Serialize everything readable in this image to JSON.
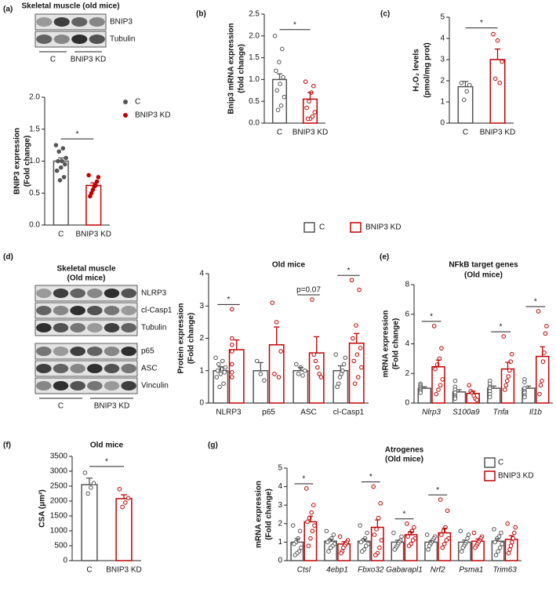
{
  "chart_data": [
    {
      "type": "bar",
      "panel": "(a)",
      "ylabel": [
        "BNIP3 expression",
        "(Fold change)"
      ],
      "categories": [
        "C",
        "BNIP3 KD"
      ],
      "colors": [
        "#555555",
        "#c00000"
      ],
      "values": [
        1.0,
        0.62
      ],
      "errors": [
        0.05,
        0.04
      ],
      "points": [
        [
          1.25,
          1.2,
          1.15,
          1.05,
          1.0,
          1.0,
          0.95,
          0.9,
          0.85,
          0.75,
          0.7
        ],
        [
          0.78,
          0.75,
          0.68,
          0.62,
          0.6,
          0.55,
          0.5,
          0.45
        ]
      ],
      "point_style": "filled",
      "ylim": [
        0,
        2
      ],
      "yticks": [
        {
          "value": 0,
          "label": "0.0"
        },
        0.5,
        {
          "value": 1,
          "label": "1.0"
        },
        1.5,
        {
          "value": 2,
          "label": "2.0"
        }
      ],
      "significance": "*",
      "legend": "right",
      "legend_marker": "circle"
    },
    {
      "type": "bar",
      "panel": "(b)",
      "ylabel": [
        "Bnip3 mRNA expression",
        "(fold change)"
      ],
      "categories": [
        "C",
        "BNIP3 KD"
      ],
      "colors": [
        "#555555",
        "#c00000"
      ],
      "values": [
        1.0,
        0.55
      ],
      "errors": [
        0.13,
        0.15
      ],
      "points": [
        [
          2.0,
          1.7,
          1.4,
          1.2,
          1.05,
          0.9,
          0.75,
          0.6,
          0.4,
          0.3
        ],
        [
          0.95,
          0.85,
          0.7,
          0.5,
          0.35,
          0.25,
          0.15,
          0.1,
          0.1
        ]
      ],
      "point_style": "open",
      "ylim": [
        0,
        2.5
      ],
      "yticks": [
        {
          "value": 0,
          "label": "0.0"
        },
        0.5,
        {
          "value": 1,
          "label": "1.0"
        },
        1.5,
        {
          "value": 2,
          "label": "2.0"
        },
        2.5
      ],
      "significance": "*"
    },
    {
      "type": "bar",
      "panel": "(c)",
      "ylabel": [
        "H₂O₂ levels",
        "(pmol/mg prot)"
      ],
      "categories": [
        "C",
        "BNIP3 KD"
      ],
      "colors": [
        "#555555",
        "#c00000"
      ],
      "values": [
        1.72,
        3.0
      ],
      "errors": [
        0.25,
        0.5
      ],
      "points": [
        [
          1.9,
          1.8,
          1.5,
          1.1
        ],
        [
          4.2,
          3.9,
          2.9,
          2.1,
          1.9
        ]
      ],
      "point_style": "open",
      "ylim": [
        0,
        5
      ],
      "yticks": [
        0,
        1,
        2,
        3,
        4,
        5
      ],
      "significance": "*"
    },
    {
      "type": "bar",
      "panel": "(d)",
      "title": [
        "Old mice"
      ],
      "ylabel": [
        "Protein expression",
        "(Fold change)"
      ],
      "categories": [
        "NLRP3",
        "p65",
        "ASC",
        "cl-Casp1"
      ],
      "series": [
        {
          "name": "C",
          "color": "#555555",
          "values": [
            1.0,
            1.0,
            1.0,
            1.0
          ],
          "errors": [
            0.12,
            0.25,
            0.1,
            0.15
          ],
          "points": [
            [
              1.4,
              1.3,
              1.2,
              1.1,
              1.05,
              1.0,
              0.95,
              0.9,
              0.8,
              0.6,
              0.5
            ],
            [
              1.3,
              0.9,
              0.7
            ],
            [
              1.2,
              1.1,
              1.0,
              0.9,
              0.85
            ],
            [
              1.5,
              1.4,
              1.2,
              1.0,
              0.9,
              0.8,
              0.6,
              0.5
            ]
          ]
        },
        {
          "name": "BNIP3 KD",
          "color": "#c00000",
          "values": [
            1.65,
            1.8,
            1.55,
            1.85
          ],
          "errors": [
            0.3,
            0.55,
            0.5,
            0.3
          ],
          "points": [
            [
              2.9,
              2.0,
              1.8,
              1.6,
              1.2,
              0.95,
              0.8
            ],
            [
              3.1,
              2.5,
              1.6,
              0.9,
              0.8
            ],
            [
              3.2,
              1.5,
              1.3,
              1.1,
              0.9,
              0.8
            ],
            [
              3.8,
              3.5,
              2.4,
              2.0,
              1.7,
              1.5,
              1.3,
              1.1,
              0.8,
              0.6
            ]
          ]
        }
      ],
      "point_style": "open",
      "ylim": [
        0,
        4
      ],
      "yticks": [
        0,
        1,
        2,
        3,
        4
      ],
      "significance": [
        "*",
        null,
        "p=0.07",
        "*"
      ]
    },
    {
      "type": "bar",
      "panel": "(e)",
      "title": [
        "NFkB target genes",
        "(Old mice)"
      ],
      "ylabel": [
        "mRNA expression",
        "(Fold change)"
      ],
      "categories": [
        "Nlrp3",
        "S100a9",
        "Tnfa",
        "Il1b"
      ],
      "italic_categories": true,
      "series": [
        {
          "name": "C",
          "color": "#555555",
          "values": [
            1.0,
            0.75,
            1.0,
            1.0
          ],
          "errors": [
            0.1,
            0.15,
            0.15,
            0.15
          ],
          "points": [
            [
              1.3,
              1.2,
              1.1,
              1.0,
              0.9,
              0.8,
              0.7
            ],
            [
              1.5,
              1.1,
              0.9,
              0.7,
              0.5,
              0.4,
              0.3
            ],
            [
              1.5,
              1.3,
              1.1,
              1.0,
              0.8,
              0.6,
              0.4
            ],
            [
              1.6,
              1.4,
              1.0,
              0.8,
              0.7,
              0.5,
              0.4
            ]
          ]
        },
        {
          "name": "BNIP3 KD",
          "color": "#c00000",
          "values": [
            2.45,
            0.65,
            2.3,
            3.15
          ],
          "errors": [
            0.45,
            0.15,
            0.45,
            0.65
          ],
          "points": [
            [
              5.2,
              3.7,
              3.0,
              2.6,
              2.3,
              1.6,
              1.2,
              0.9,
              0.6
            ],
            [
              1.2,
              0.8,
              0.7,
              0.5,
              0.3,
              0.2
            ],
            [
              4.5,
              3.3,
              2.8,
              2.2,
              1.8,
              1.5,
              1.2,
              0.9
            ],
            [
              6.2,
              5.2,
              4.7,
              3.4,
              2.8,
              1.5,
              1.2,
              0.6
            ]
          ]
        }
      ],
      "point_style": "open",
      "ylim": [
        0,
        8
      ],
      "yticks": [
        0,
        2,
        4,
        6,
        8
      ],
      "significance": [
        "*",
        null,
        "*",
        "*"
      ]
    },
    {
      "type": "bar",
      "panel": "(f)",
      "title": [
        "Old mice"
      ],
      "ylabel": [
        "CSA (μm²)"
      ],
      "categories": [
        "C",
        "BNIP3 KD"
      ],
      "colors": [
        "#555555",
        "#c00000"
      ],
      "values": [
        2550,
        2080
      ],
      "errors": [
        220,
        130
      ],
      "points": [
        [
          2950,
          2600,
          2450,
          2250
        ],
        [
          2400,
          2100,
          1950,
          1800
        ]
      ],
      "point_style": "open",
      "ylim": [
        0,
        3500
      ],
      "yticks": [
        0,
        500,
        1000,
        1500,
        2000,
        2500,
        3000,
        3500
      ],
      "significance": "*"
    },
    {
      "type": "bar",
      "panel": "(g)",
      "title": [
        "Atrogenes",
        "(Old mice)"
      ],
      "ylabel": [
        "mRNA expression",
        "(Fold change)"
      ],
      "categories": [
        "Ctsl",
        "4ebp1",
        "Fbxo32",
        "Gabarapl1",
        "Nrf2",
        "Psma1",
        "Trim63"
      ],
      "italic_categories": true,
      "series": [
        {
          "name": "C",
          "color": "#555555",
          "values": [
            1.0,
            1.05,
            1.05,
            1.0,
            1.0,
            1.0,
            1.05
          ],
          "errors": [
            0.18,
            0.1,
            0.12,
            0.1,
            0.08,
            0.1,
            0.14
          ],
          "points": [
            [
              1.9,
              1.6,
              1.2,
              1.0,
              0.9,
              0.7,
              0.5,
              0.4,
              0.3
            ],
            [
              1.6,
              1.4,
              1.2,
              1.1,
              1.0,
              0.9,
              0.8,
              0.7,
              0.5
            ],
            [
              1.9,
              1.5,
              1.2,
              1.1,
              1.0,
              0.9,
              0.8,
              0.6,
              0.5
            ],
            [
              1.5,
              1.3,
              1.1,
              1.0,
              0.9,
              0.8,
              0.7,
              0.6
            ],
            [
              1.4,
              1.3,
              1.2,
              1.1,
              1.0,
              0.9,
              0.8,
              0.6
            ],
            [
              1.6,
              1.4,
              1.2,
              1.0,
              0.9,
              0.8,
              0.7,
              0.5
            ],
            [
              1.7,
              1.5,
              1.3,
              1.2,
              1.0,
              0.9,
              0.7,
              0.5,
              0.3
            ]
          ]
        },
        {
          "name": "BNIP3 KD",
          "color": "#c00000",
          "values": [
            2.1,
            0.9,
            1.8,
            1.4,
            1.5,
            1.05,
            1.15
          ],
          "errors": [
            0.3,
            0.12,
            0.4,
            0.15,
            0.25,
            0.12,
            0.2
          ],
          "points": [
            [
              3.9,
              3.0,
              2.6,
              2.3,
              2.1,
              1.9,
              1.6,
              1.2,
              0.8
            ],
            [
              1.3,
              1.1,
              1.0,
              0.9,
              0.8,
              0.7,
              0.5,
              0.4
            ],
            [
              4.0,
              3.1,
              2.3,
              1.7,
              1.4,
              1.1,
              0.7,
              0.4,
              0.3
            ],
            [
              2.0,
              1.8,
              1.6,
              1.5,
              1.3,
              1.2,
              1.1,
              0.9,
              0.8
            ],
            [
              3.3,
              2.7,
              1.8,
              1.6,
              1.4,
              1.2,
              1.1,
              0.9,
              0.7
            ],
            [
              1.5,
              1.3,
              1.2,
              1.1,
              1.0,
              0.9,
              0.8,
              0.7
            ],
            [
              2.0,
              1.8,
              1.5,
              1.2,
              1.0,
              0.8,
              0.6,
              0.4
            ]
          ]
        }
      ],
      "point_style": "open",
      "ylim": [
        0,
        5
      ],
      "yticks": [
        0,
        1,
        2,
        3,
        4,
        5
      ],
      "significance": [
        "*",
        null,
        "*",
        "*",
        "*",
        null,
        null
      ],
      "legend": "upper right",
      "legend_marker": "square"
    }
  ],
  "blots": [
    {
      "title": [
        "Skeletal muscle (old mice)"
      ],
      "bands": [
        "BNIP3",
        "Tubulin"
      ],
      "groups": [
        "C",
        "BNIP3 KD"
      ]
    },
    {
      "title": [
        "Skeletal muscle",
        "(Old mice)"
      ],
      "bands": [
        "NLRP3",
        "cl-Casp1",
        "Tubulin",
        "p65",
        "ASC",
        "Vinculin"
      ],
      "groups": [
        "C",
        "BNIP3 KD"
      ]
    }
  ]
}
